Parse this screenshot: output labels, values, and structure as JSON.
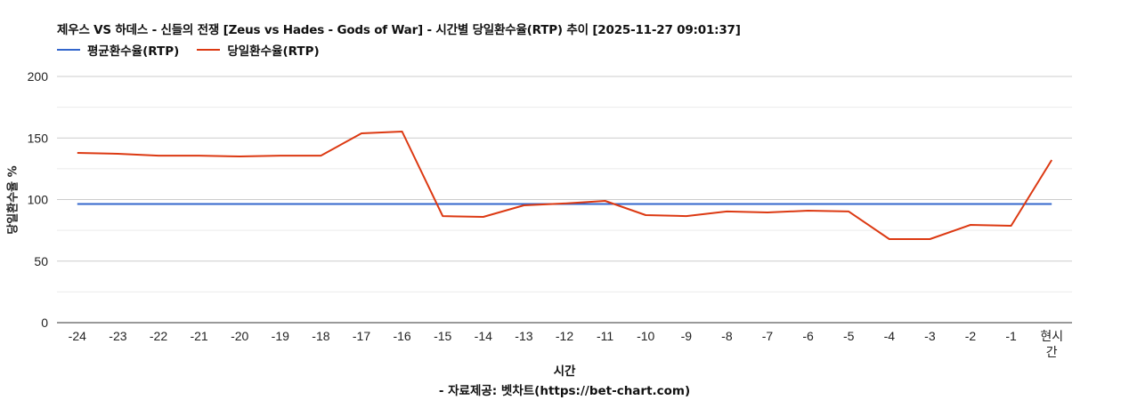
{
  "header": {
    "title": "제우스 VS 하데스 - 신들의 전쟁 [Zeus vs Hades - Gods of War] - 시간별 당일환수율(RTP) 추이 [2025-11-27 09:01:37]"
  },
  "legend": [
    {
      "label": "평균환수율(RTP)",
      "color": "#3366cc"
    },
    {
      "label": "당일환수율(RTP)",
      "color": "#dc3912"
    }
  ],
  "axes": {
    "y_title": "당일환수율 %",
    "x_title": "시간",
    "y_ticks": [
      "0",
      "50",
      "100",
      "150",
      "200"
    ]
  },
  "footer": {
    "source": "- 자료제공: 벳차트(https://bet-chart.com)"
  },
  "chart_data": {
    "type": "line",
    "title": "제우스 VS 하데스 - 신들의 전쟁 [Zeus vs Hades - Gods of War] - 시간별 당일환수율(RTP) 추이 [2025-11-27 09:01:37]",
    "xlabel": "시간",
    "ylabel": "당일환수율 %",
    "ylim": [
      0,
      200
    ],
    "yticks": [
      0,
      50,
      100,
      150,
      200
    ],
    "grid": true,
    "legend_position": "top",
    "categories": [
      "-24",
      "-23",
      "-22",
      "-21",
      "-20",
      "-19",
      "-18",
      "-17",
      "-16",
      "-15",
      "-14",
      "-13",
      "-12",
      "-11",
      "-10",
      "-9",
      "-8",
      "-7",
      "-6",
      "-5",
      "-4",
      "-3",
      "-2",
      "-1",
      "현시간"
    ],
    "series": [
      {
        "name": "평균환수율(RTP)",
        "color": "#3366cc",
        "values": [
          96.4,
          96.4,
          96.4,
          96.4,
          96.4,
          96.4,
          96.4,
          96.4,
          96.4,
          96.4,
          96.4,
          96.4,
          96.4,
          96.4,
          96.4,
          96.4,
          96.4,
          96.4,
          96.4,
          96.4,
          96.4,
          96.4,
          96.4,
          96.4,
          96.4
        ]
      },
      {
        "name": "당일환수율(RTP)",
        "color": "#dc3912",
        "values": [
          137.9,
          137.2,
          135.7,
          135.7,
          135.0,
          135.7,
          135.7,
          153.8,
          155.2,
          86.6,
          85.9,
          95.3,
          96.8,
          98.9,
          87.4,
          86.6,
          90.3,
          89.5,
          91.0,
          90.3,
          67.9,
          67.9,
          79.4,
          78.7,
          132.1
        ]
      }
    ]
  }
}
